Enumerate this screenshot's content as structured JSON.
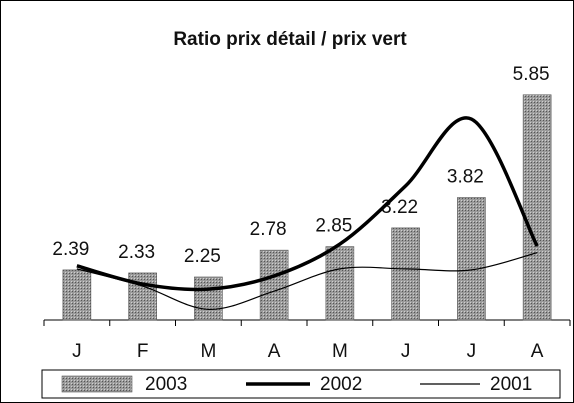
{
  "chart_data": {
    "type": "bar",
    "title": "Ratio prix détail / prix vert",
    "categories": [
      "J",
      "F",
      "M",
      "A",
      "M",
      "J",
      "J",
      "A"
    ],
    "ylim": [
      1.4,
      6.3
    ],
    "series": [
      {
        "name": "2003",
        "type": "bar",
        "color": "#8a8a8a",
        "values": [
          2.39,
          2.33,
          2.25,
          2.78,
          2.85,
          3.22,
          3.82,
          5.85
        ]
      },
      {
        "name": "2002",
        "type": "line",
        "color": "#000000",
        "width": 3.5,
        "values": [
          2.47,
          2.11,
          2.01,
          2.27,
          2.9,
          4.05,
          5.37,
          2.86
        ]
      },
      {
        "name": "2001",
        "type": "line",
        "color": "#000000",
        "width": 1.2,
        "values": [
          2.41,
          2.07,
          1.61,
          1.97,
          2.41,
          2.41,
          2.39,
          2.73
        ]
      }
    ]
  }
}
